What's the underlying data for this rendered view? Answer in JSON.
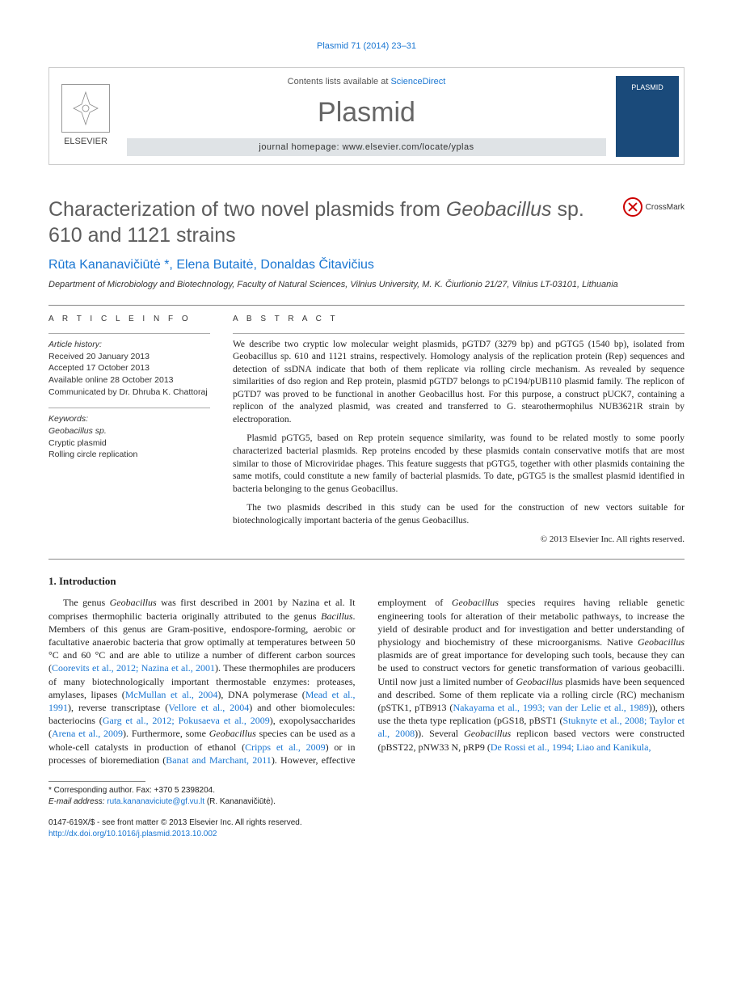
{
  "running_head": "Plasmid 71 (2014) 23–31",
  "masthead": {
    "contents_prefix": "Contents lists available at ",
    "contents_link": "ScienceDirect",
    "journal": "Plasmid",
    "homepage_prefix": "journal homepage: ",
    "homepage_url": "www.elsevier.com/locate/yplas",
    "publisher": "ELSEVIER",
    "cover_label": "PLASMID"
  },
  "title_pre": "Characterization of two novel plasmids from ",
  "title_ital": "Geobacillus",
  "title_post": " sp. 610 and 1121 strains",
  "crossmark": "CrossMark",
  "authors": "Rūta Kananavičiūtė *, Elena Butaitė, Donaldas Čitavičius",
  "affiliation": "Department of Microbiology and Biotechnology, Faculty of Natural Sciences, Vilnius University, M. K. Čiurlionio 21/27, Vilnius LT-03101, Lithuania",
  "info": {
    "heading": "A R T I C L E   I N F O",
    "history_label": "Article history:",
    "received": "Received 20 January 2013",
    "accepted": "Accepted 17 October 2013",
    "online": "Available online 28 October 2013",
    "communicated": "Communicated by Dr. Dhruba K. Chattoraj",
    "keywords_label": "Keywords:",
    "kw1": "Geobacillus sp.",
    "kw2": "Cryptic plasmid",
    "kw3": "Rolling circle replication"
  },
  "abstract": {
    "heading": "A B S T R A C T",
    "p1": "We describe two cryptic low molecular weight plasmids, pGTD7 (3279 bp) and pGTG5 (1540 bp), isolated from Geobacillus sp. 610 and 1121 strains, respectively. Homology analysis of the replication protein (Rep) sequences and detection of ssDNA indicate that both of them replicate via rolling circle mechanism. As revealed by sequence similarities of dso region and Rep protein, plasmid pGTD7 belongs to pC194/pUB110 plasmid family. The replicon of pGTD7 was proved to be functional in another Geobacillus host. For this purpose, a construct pUCK7, containing a replicon of the analyzed plasmid, was created and transferred to G. stearothermophilus NUB3621R strain by electroporation.",
    "p2": "Plasmid pGTG5, based on Rep protein sequence similarity, was found to be related mostly to some poorly characterized bacterial plasmids. Rep proteins encoded by these plasmids contain conservative motifs that are most similar to those of Microviridae phages. This feature suggests that pGTG5, together with other plasmids containing the same motifs, could constitute a new family of bacterial plasmids. To date, pGTG5 is the smallest plasmid identified in bacteria belonging to the genus Geobacillus.",
    "p3": "The two plasmids described in this study can be used for the construction of new vectors suitable for biotechnologically important bacteria of the genus Geobacillus.",
    "copyright": "© 2013 Elsevier Inc. All rights reserved."
  },
  "intro_heading": "1. Introduction",
  "body_html": "The genus <span class=\"ital\">Geobacillus</span> was first described in 2001 by Nazina et al. It comprises thermophilic bacteria originally attributed to the genus <span class=\"ital\">Bacillus</span>. Members of this genus are Gram-positive, endospore-forming, aerobic or facultative anaerobic bacteria that grow optimally at temperatures between 50 °C and 60 °C and are able to utilize a number of different carbon sources (<a href=\"#\">Coorevits et al., 2012; Nazina et al., 2001</a>). These thermophiles are producers of many biotechnologically important thermostable enzymes: proteases, amylases, lipases (<a href=\"#\">McMullan et al., 2004</a>), DNA polymerase (<a href=\"#\">Mead et al., 1991</a>), reverse transcriptase (<a href=\"#\">Vellore et al., 2004</a>) and other biomolecules: bacteriocins (<a href=\"#\">Garg et al., 2012; Pokusaeva et al., 2009</a>), exopolysaccharides (<a href=\"#\">Arena et al., 2009</a>). Furthermore, some <span class=\"ital\">Geobacillus</span> species can be used as a whole-cell catalysts in production of ethanol (<a href=\"#\">Cripps et al., 2009</a>) or in processes of bioremediation (<a href=\"#\">Banat and Marchant, 2011</a>). However, effective employment of <span class=\"ital\">Geobacillus</span> species requires having reliable genetic engineering tools for alteration of their metabolic pathways, to increase the yield of desirable product and for investigation and better understanding of physiology and biochemistry of these microorganisms. Native <span class=\"ital\">Geobacillus</span> plasmids are of great importance for developing such tools, because they can be used to construct vectors for genetic transformation of various geobacilli. Until now just a limited number of <span class=\"ital\">Geobacillus</span> plasmids have been sequenced and described. Some of them replicate via a rolling circle (RC) mechanism (pSTK1, pTB913 (<a href=\"#\">Nakayama et al., 1993; van der Lelie et al., 1989</a>)), others use the theta type replication (pGS18, pBST1 (<a href=\"#\">Stuknyte et al., 2008; Taylor et al., 2008</a>)). Several <span class=\"ital\">Geobacillus</span> replicon based vectors were constructed (pBST22, pNW33 N, pRP9 (<a href=\"#\">De Rossi et al., 1994; Liao and Kanikula,</a>",
  "footnotes": {
    "corr": "* Corresponding author. Fax: +370 5 2398204.",
    "email_label": "E-mail address:",
    "email": "ruta.kananaviciute@gf.vu.lt",
    "email_name": "(R. Kananavičiūtė)."
  },
  "bottom": {
    "issn": "0147-619X/$ - see front matter © 2013 Elsevier Inc. All rights reserved.",
    "doi": "http://dx.doi.org/10.1016/j.plasmid.2013.10.002"
  }
}
